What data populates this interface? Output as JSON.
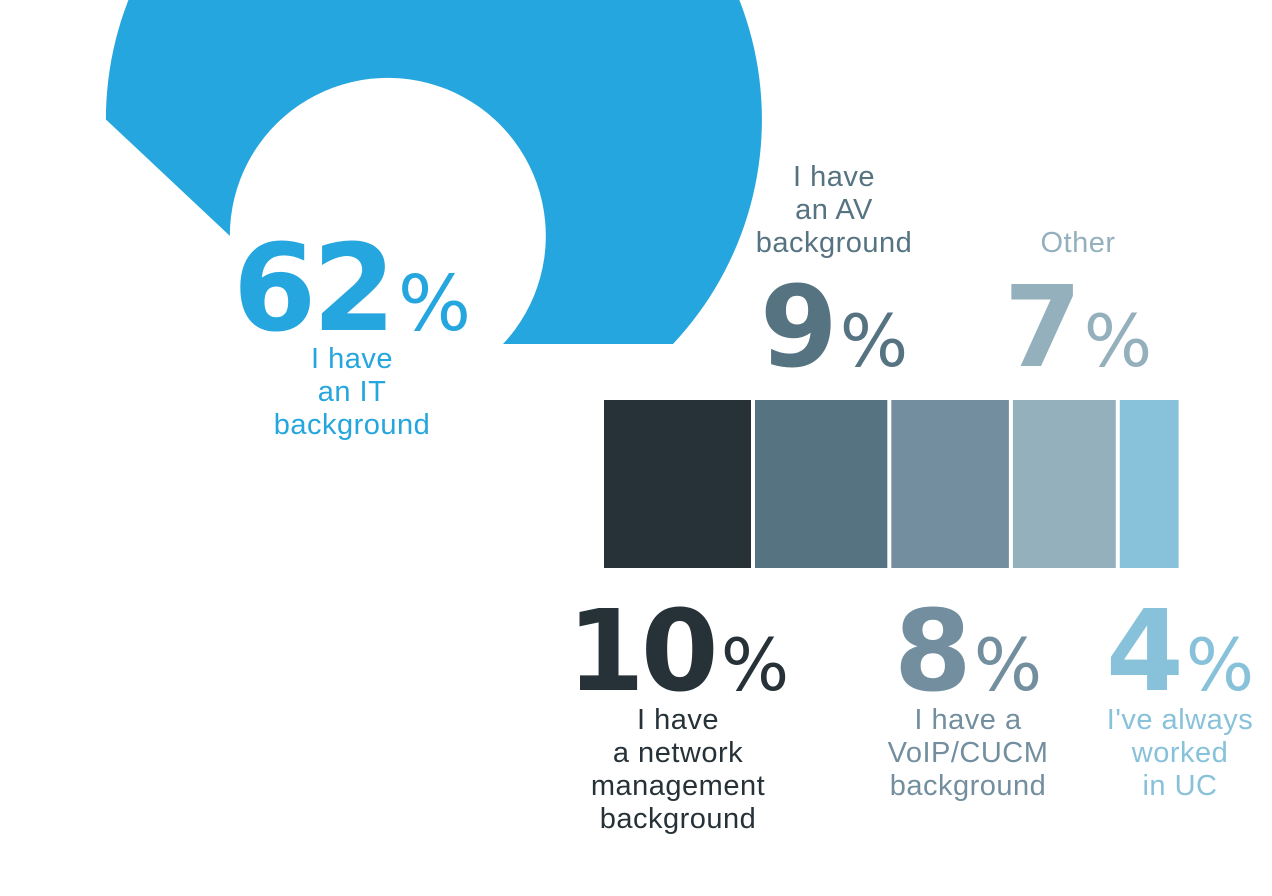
{
  "chart_data": {
    "type": "bar",
    "title": "",
    "series": [
      {
        "label_lines": [
          "I have",
          "an IT",
          "background"
        ],
        "value": 62,
        "number": "62",
        "unit": "%",
        "color": "#25a6de"
      },
      {
        "label_lines": [
          "I have",
          "a network",
          "management",
          "background"
        ],
        "value": 10,
        "number": "10",
        "unit": "%",
        "color": "#273238"
      },
      {
        "label_lines": [
          "I have",
          "an AV",
          "background"
        ],
        "value": 9,
        "number": "9",
        "unit": "%",
        "color": "#567382"
      },
      {
        "label_lines": [
          "I have a",
          "VoIP/CUCM",
          "background"
        ],
        "value": 8,
        "number": "8",
        "unit": "%",
        "color": "#738f9f"
      },
      {
        "label_lines": [
          "Other"
        ],
        "value": 7,
        "number": "7",
        "unit": "%",
        "color": "#95b0bd"
      },
      {
        "label_lines": [
          "I've always",
          "worked",
          "in UC"
        ],
        "value": 4,
        "number": "4",
        "unit": "%",
        "color": "#88c2da"
      }
    ],
    "legend": "none",
    "grid": false
  }
}
